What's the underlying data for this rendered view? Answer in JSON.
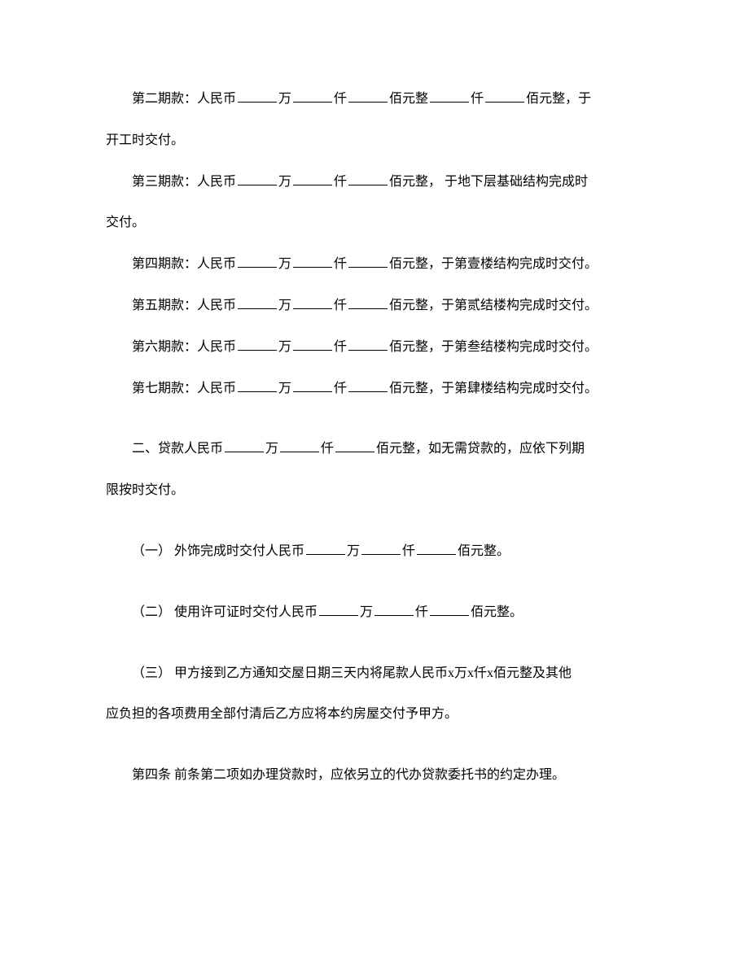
{
  "lines": {
    "p1_a": "第二期款：人民币",
    "p1_b": "万",
    "p1_c": "仟",
    "p1_d": "佰元整",
    "p1_e": "仟",
    "p1_f": "佰元整，于",
    "p1_g": "开工时交付。",
    "p2_a": "第三期款：人民币",
    "p2_b": "万",
    "p2_c": "仟",
    "p2_d": "佰元整， 于地下层基础结构完成时",
    "p2_e": "交付。",
    "p3_a": "第四期款：人民币",
    "p3_b": "万",
    "p3_c": "仟",
    "p3_d": "佰元整，于第壹楼结构完成时交付。",
    "p4_a": "第五期款：人民币",
    "p4_b": "万",
    "p4_c": "仟",
    "p4_d": "佰元整，于第贰结楼构完成时交付。",
    "p5_a": "第六期款：人民币",
    "p5_b": "万",
    "p5_c": "仟",
    "p5_d": "佰元整，于第叁结楼构完成时交付。",
    "p6_a": "第七期款：人民币",
    "p6_b": "万",
    "p6_c": "仟",
    "p6_d": "佰元整，于第肆楼结构完成时交付。",
    "p7_a": "二、贷款人民币",
    "p7_b": "万",
    "p7_c": "仟",
    "p7_d": "佰元整，如无需贷款的，应依下列期",
    "p7_e": "限按时交付。",
    "p8_a": "（一） 外饰完成时交付人民币",
    "p8_b": "万",
    "p8_c": "仟",
    "p8_d": "佰元整。",
    "p9_a": "（二） 使用许可证时交付人民币",
    "p9_b": "万",
    "p9_c": "仟",
    "p9_d": "佰元整。",
    "p10_a": "（三） 甲方接到乙方通知交屋日期三天内将尾款人民币x万x仟x佰元整及其他",
    "p10_b": "应负担的各项费用全部付清后乙方应将本约房屋交付予甲方。",
    "p11": "第四条  前条第二项如办理贷款时，应依另立的代办贷款委托书的约定办理。"
  }
}
